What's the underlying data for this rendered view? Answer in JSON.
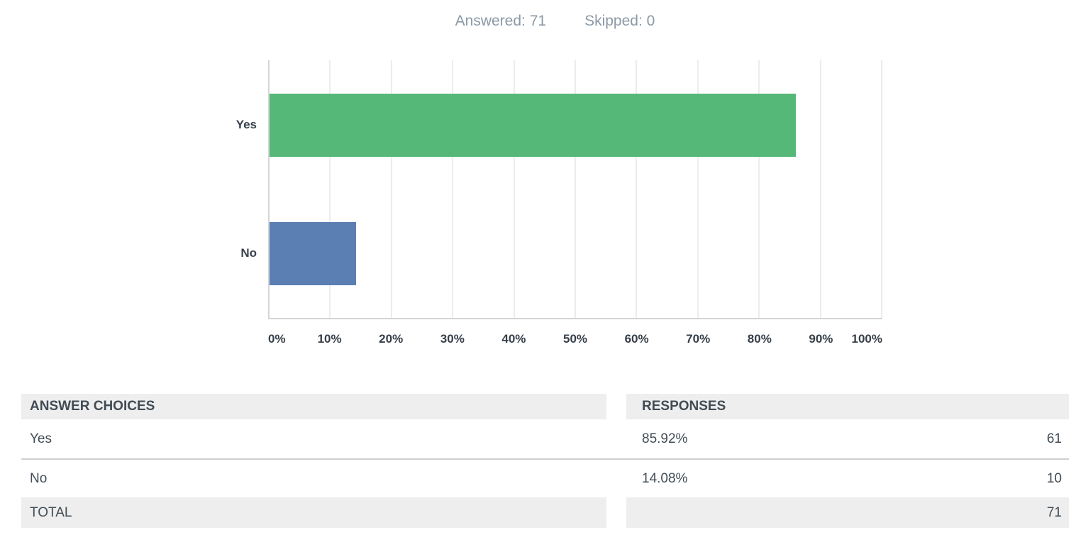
{
  "stats": {
    "answered": "Answered: 71",
    "skipped": "Skipped: 0"
  },
  "chart_data": {
    "type": "bar",
    "orientation": "horizontal",
    "title": "",
    "categories": [
      "Yes",
      "No"
    ],
    "values": [
      85.92,
      14.08
    ],
    "counts": [
      61,
      10
    ],
    "bar_colors": [
      "#55b878",
      "#5b7eb3"
    ],
    "xlabel": "",
    "ylabel": "",
    "xlim": [
      0,
      100
    ],
    "x_ticks": [
      "0%",
      "10%",
      "20%",
      "30%",
      "40%",
      "50%",
      "60%",
      "70%",
      "80%",
      "90%",
      "100%"
    ],
    "grid": true,
    "legend": "none"
  },
  "table": {
    "headers": [
      "ANSWER CHOICES",
      "RESPONSES"
    ],
    "rows": [
      {
        "choice": "Yes",
        "percent": "85.92%",
        "count": "61"
      },
      {
        "choice": "No",
        "percent": "14.08%",
        "count": "10"
      }
    ],
    "total": {
      "label": "TOTAL",
      "count": "71"
    }
  },
  "colors": {
    "yes_bar": "#55b878",
    "no_bar": "#5b7eb3",
    "gridline": "#ececec",
    "axis_line": "#d5d5d5",
    "stats_text": "#8b99a6",
    "chart_text": "#37404a",
    "table_text": "#424c55",
    "table_header_bg": "#eeeeee",
    "row_divider": "#cfcfcf"
  }
}
